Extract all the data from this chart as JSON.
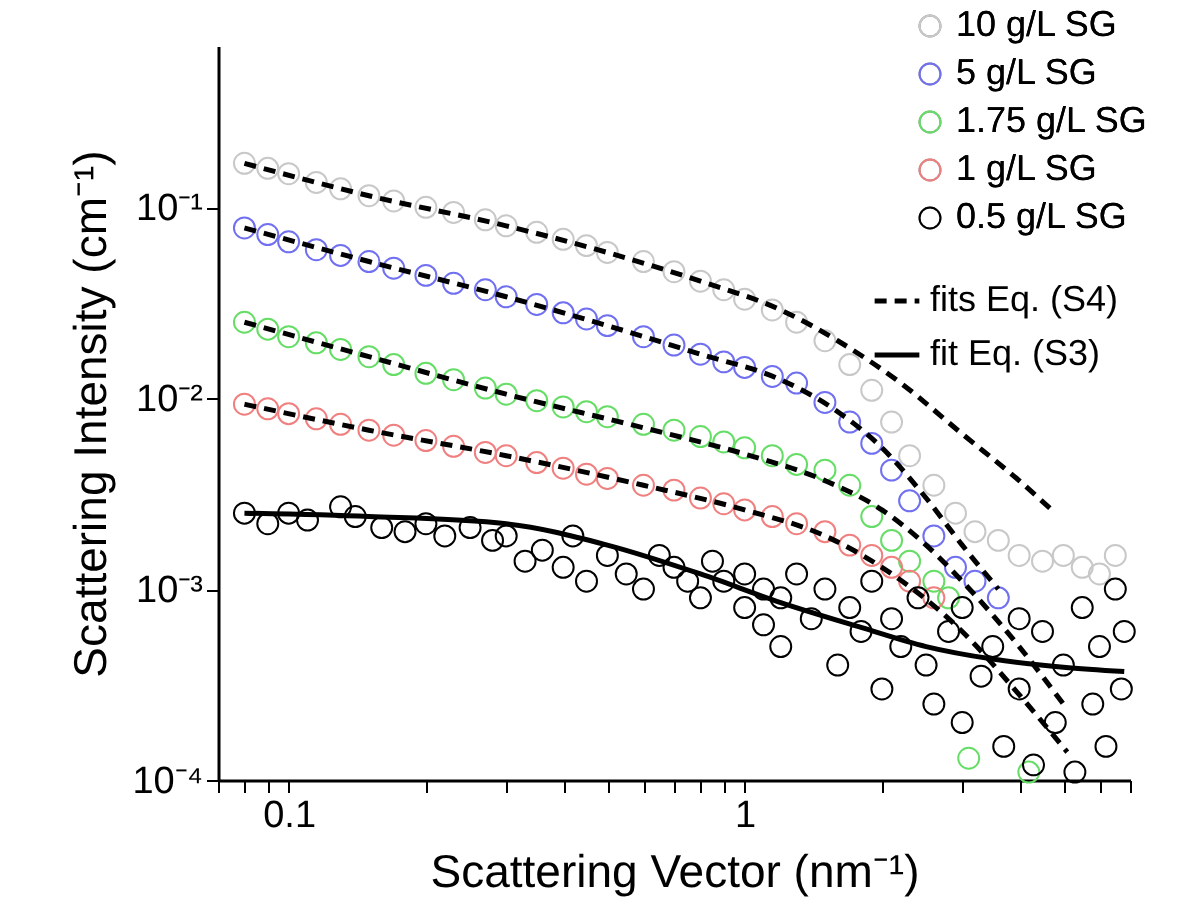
{
  "chart_data": {
    "type": "scatter",
    "xlabel": "Scattering Vector (nm⁻¹)",
    "ylabel": "Scattering Intensity (cm⁻¹)",
    "log": "xy",
    "xlim": [
      0.07,
      7
    ],
    "ylim": [
      0.0001,
      0.7
    ],
    "xticks": [
      {
        "value": 0.07,
        "label": null
      },
      {
        "value": 0.08,
        "label": null
      },
      {
        "value": 0.09,
        "label": null
      },
      0.1,
      {
        "value": 0.2,
        "label": null
      },
      {
        "value": 0.3,
        "label": null
      },
      {
        "value": 0.4,
        "label": null
      },
      {
        "value": 0.5,
        "label": null
      },
      {
        "value": 0.6,
        "label": null
      },
      {
        "value": 0.7,
        "label": null
      },
      {
        "value": 0.8,
        "label": null
      },
      {
        "value": 0.9,
        "label": null
      },
      1,
      {
        "value": 2,
        "label": null
      },
      {
        "value": 3,
        "label": null
      },
      {
        "value": 4,
        "label": null
      },
      {
        "value": 5,
        "label": null
      },
      {
        "value": 6,
        "label": null
      },
      {
        "value": 7,
        "label": null
      }
    ],
    "yticks": [
      {
        "value": 0.0001,
        "label": "10⁻⁴"
      },
      {
        "value": 0.001,
        "label": "10⁻³"
      },
      {
        "value": 0.01,
        "label": "10⁻²"
      },
      {
        "value": 0.1,
        "label": "10⁻¹"
      }
    ],
    "legend": "top right",
    "grid": false,
    "series": [
      {
        "name": "10 g/L SG",
        "color": "#c8c8c8",
        "marker": "circle",
        "x": [
          0.08,
          0.09,
          0.1,
          0.115,
          0.13,
          0.15,
          0.17,
          0.2,
          0.23,
          0.27,
          0.3,
          0.35,
          0.4,
          0.45,
          0.5,
          0.6,
          0.7,
          0.8,
          0.9,
          1.0,
          1.15,
          1.3,
          1.5,
          1.7,
          1.9,
          2.1,
          2.3,
          2.6,
          2.9,
          3.2,
          3.6,
          4.0,
          4.5,
          5.0,
          5.5,
          6.0,
          6.5
        ],
        "values": [
          0.17,
          0.16,
          0.15,
          0.135,
          0.125,
          0.115,
          0.108,
          0.1,
          0.094,
          0.086,
          0.08,
          0.074,
          0.068,
          0.063,
          0.058,
          0.052,
          0.046,
          0.041,
          0.037,
          0.033,
          0.029,
          0.025,
          0.02,
          0.015,
          0.011,
          0.0075,
          0.005,
          0.0035,
          0.0025,
          0.002,
          0.0018,
          0.0015,
          0.0014,
          0.0015,
          0.0013,
          0.0012,
          0.0015
        ]
      },
      {
        "name": "5 g/L SG",
        "color": "#7070f0",
        "marker": "circle",
        "x": [
          0.08,
          0.09,
          0.1,
          0.115,
          0.13,
          0.15,
          0.17,
          0.2,
          0.23,
          0.27,
          0.3,
          0.35,
          0.4,
          0.45,
          0.5,
          0.6,
          0.7,
          0.8,
          0.9,
          1.0,
          1.15,
          1.3,
          1.5,
          1.7,
          1.9,
          2.1,
          2.3,
          2.6,
          2.9,
          3.2,
          3.6
        ],
        "values": [
          0.078,
          0.072,
          0.066,
          0.06,
          0.056,
          0.052,
          0.048,
          0.044,
          0.04,
          0.037,
          0.034,
          0.031,
          0.028,
          0.026,
          0.024,
          0.021,
          0.019,
          0.017,
          0.0155,
          0.0145,
          0.013,
          0.012,
          0.0095,
          0.0075,
          0.0058,
          0.0042,
          0.0029,
          0.0019,
          0.0013,
          0.0011,
          0.0009
        ]
      },
      {
        "name": "1.75 g/L SG",
        "color": "#66dd66",
        "marker": "circle",
        "x": [
          0.08,
          0.09,
          0.1,
          0.115,
          0.13,
          0.15,
          0.17,
          0.2,
          0.23,
          0.27,
          0.3,
          0.35,
          0.4,
          0.45,
          0.5,
          0.6,
          0.7,
          0.8,
          0.9,
          1.0,
          1.15,
          1.3,
          1.5,
          1.7,
          1.9,
          2.1,
          2.3,
          2.6,
          2.8,
          3.1,
          4.2
        ],
        "values": [
          0.025,
          0.023,
          0.021,
          0.0195,
          0.018,
          0.0165,
          0.015,
          0.0135,
          0.0125,
          0.0113,
          0.0105,
          0.0097,
          0.009,
          0.0085,
          0.008,
          0.0073,
          0.0068,
          0.0063,
          0.0059,
          0.0055,
          0.005,
          0.0045,
          0.0042,
          0.0035,
          0.0024,
          0.0018,
          0.0014,
          0.0011,
          0.0009,
          0.00013,
          0.00011
        ]
      },
      {
        "name": "1 g/L SG",
        "color": "#f08080",
        "marker": "circle",
        "x": [
          0.08,
          0.09,
          0.1,
          0.115,
          0.13,
          0.15,
          0.17,
          0.2,
          0.23,
          0.27,
          0.3,
          0.35,
          0.4,
          0.45,
          0.5,
          0.6,
          0.7,
          0.8,
          0.9,
          1.0,
          1.15,
          1.3,
          1.5,
          1.7,
          1.9,
          2.1,
          2.3,
          2.6
        ],
        "values": [
          0.0093,
          0.0088,
          0.0083,
          0.0078,
          0.0073,
          0.0068,
          0.0064,
          0.006,
          0.0056,
          0.0052,
          0.005,
          0.0046,
          0.0043,
          0.004,
          0.0038,
          0.0035,
          0.0033,
          0.003,
          0.0028,
          0.0026,
          0.0024,
          0.0022,
          0.002,
          0.0017,
          0.0015,
          0.0013,
          0.0011,
          0.0009
        ]
      },
      {
        "name": "0.5 g/L SG",
        "color": "#000000",
        "marker": "circle",
        "x": [
          0.08,
          0.09,
          0.1,
          0.11,
          0.13,
          0.14,
          0.16,
          0.18,
          0.2,
          0.22,
          0.25,
          0.28,
          0.3,
          0.33,
          0.36,
          0.4,
          0.42,
          0.45,
          0.5,
          0.55,
          0.6,
          0.65,
          0.7,
          0.75,
          0.8,
          0.85,
          0.9,
          1.0,
          1.0,
          1.1,
          1.1,
          1.2,
          1.2,
          1.3,
          1.4,
          1.5,
          1.6,
          1.7,
          1.8,
          1.9,
          2.0,
          2.1,
          2.2,
          2.4,
          2.5,
          2.6,
          2.8,
          3.0,
          3.0,
          3.3,
          3.5,
          3.7,
          4.0,
          4.0,
          4.3,
          4.5,
          4.8,
          5.0,
          5.3,
          5.5,
          5.8,
          6.0,
          6.2,
          6.5,
          6.7,
          6.8
        ],
        "values": [
          0.0025,
          0.0022,
          0.0025,
          0.0023,
          0.0027,
          0.0024,
          0.0021,
          0.002,
          0.0022,
          0.0019,
          0.0021,
          0.0018,
          0.0019,
          0.0014,
          0.0016,
          0.0013,
          0.0019,
          0.0011,
          0.0015,
          0.0012,
          0.001,
          0.0015,
          0.0013,
          0.0011,
          0.0009,
          0.0014,
          0.0011,
          0.0008,
          0.0012,
          0.00065,
          0.001,
          0.0005,
          0.0009,
          0.0012,
          0.0007,
          0.001,
          0.0004,
          0.0008,
          0.0006,
          0.0011,
          0.0003,
          0.0007,
          0.0005,
          0.0009,
          0.0004,
          0.00025,
          0.0006,
          0.0002,
          0.0008,
          0.00035,
          0.0005,
          0.00015,
          0.0007,
          0.0003,
          0.00012,
          0.0006,
          0.0002,
          0.0004,
          0.00011,
          0.0008,
          0.00025,
          0.0005,
          0.00015,
          0.001,
          0.0003,
          0.0006
        ]
      },
      {
        "name": "fits Eq. (S4)",
        "type": "line",
        "color": "#000000",
        "line_style": "dashed",
        "x": [
          0.08,
          0.15,
          0.3,
          0.5,
          0.8,
          1.2,
          1.6,
          2.2,
          3,
          4,
          4.8
        ],
        "values": [
          0.17,
          0.115,
          0.08,
          0.058,
          0.041,
          0.029,
          0.02,
          0.012,
          0.0065,
          0.0037,
          0.0025
        ]
      },
      {
        "type": "line",
        "color": "#000000",
        "line_style": "dashed",
        "x": [
          0.08,
          0.15,
          0.3,
          0.5,
          0.8,
          1.2,
          1.6,
          2.0,
          2.5,
          3.0,
          3.6
        ],
        "values": [
          0.078,
          0.052,
          0.034,
          0.024,
          0.017,
          0.0125,
          0.0085,
          0.0055,
          0.003,
          0.0017,
          0.001
        ]
      },
      {
        "type": "line",
        "color": "#000000",
        "line_style": "dashed",
        "x": [
          0.08,
          0.15,
          0.3,
          0.6,
          1,
          1.5,
          2,
          2.5,
          3,
          4,
          5
        ],
        "values": [
          0.025,
          0.0165,
          0.0105,
          0.007,
          0.0051,
          0.0037,
          0.0026,
          0.0017,
          0.0011,
          0.0005,
          0.00025
        ]
      },
      {
        "type": "line",
        "color": "#000000",
        "line_style": "dashed",
        "x": [
          0.08,
          0.15,
          0.3,
          0.6,
          1,
          1.5,
          2,
          3,
          4,
          5.1
        ],
        "values": [
          0.0093,
          0.0068,
          0.005,
          0.0035,
          0.0026,
          0.0019,
          0.0013,
          0.0006,
          0.00028,
          0.00014
        ]
      },
      {
        "name": "fit Eq. (S3)",
        "type": "line",
        "color": "#000000",
        "line_style": "solid",
        "x": [
          0.08,
          0.15,
          0.3,
          0.5,
          0.8,
          1.2,
          1.8,
          2.5,
          3.5,
          5,
          6.8
        ],
        "values": [
          0.0025,
          0.0024,
          0.0022,
          0.0017,
          0.0012,
          0.00085,
          0.00063,
          0.0005,
          0.00043,
          0.00039,
          0.00037
        ]
      }
    ]
  }
}
